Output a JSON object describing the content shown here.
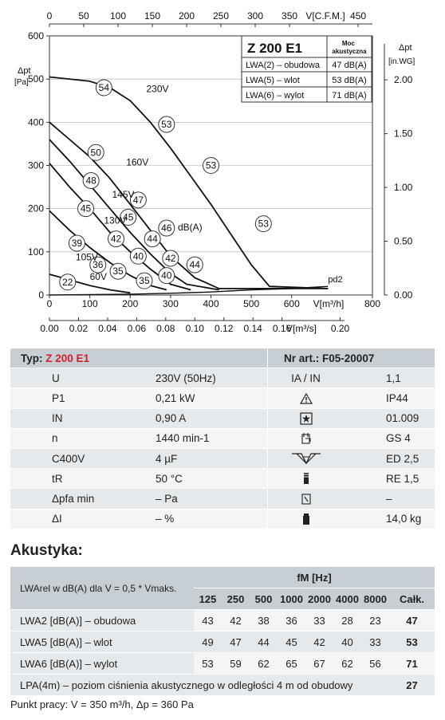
{
  "chart_data": {
    "type": "line",
    "xlabel": "V[m³/h]",
    "ylabel_left": "Δpt",
    "ylabel_left_unit": "[Pa]",
    "ylabel_right": "Δpt",
    "ylabel_right_unit": "[in.WG]",
    "x2label": "V[C.F.M.]",
    "x3label": "V[m³/s]",
    "xlim": [
      0,
      800
    ],
    "ylim": [
      0,
      600
    ],
    "x_ticks": [
      "0",
      "100",
      "200",
      "300",
      "400",
      "500",
      "600",
      "800"
    ],
    "y_ticks": [
      "0",
      "100",
      "200",
      "300",
      "400",
      "500",
      "600"
    ],
    "x2_ticks": [
      "0",
      "50",
      "100",
      "150",
      "200",
      "250",
      "300",
      "350",
      "450"
    ],
    "x3_ticks": [
      "0.00",
      "0.02",
      "0.04",
      "0.06",
      "0.08",
      "0.10",
      "0.12",
      "0.14",
      "0.16",
      "0.20"
    ],
    "y2_ticks": [
      "0.00",
      "0.50",
      "1.00",
      "1.50",
      "2.00"
    ],
    "series": [
      {
        "name": "230V",
        "points": [
          [
            0,
            505
          ],
          [
            100,
            495
          ],
          [
            150,
            480
          ],
          [
            200,
            450
          ],
          [
            250,
            400
          ],
          [
            300,
            340
          ],
          [
            350,
            275
          ],
          [
            400,
            210
          ],
          [
            450,
            140
          ],
          [
            500,
            70
          ],
          [
            545,
            20
          ],
          [
            690,
            15
          ]
        ]
      },
      {
        "name": "160V",
        "points": [
          [
            0,
            400
          ],
          [
            50,
            360
          ],
          [
            100,
            320
          ],
          [
            150,
            270
          ],
          [
            200,
            210
          ],
          [
            250,
            150
          ],
          [
            300,
            90
          ],
          [
            360,
            40
          ],
          [
            420,
            15
          ],
          [
            690,
            15
          ]
        ]
      },
      {
        "name": "145V",
        "points": [
          [
            0,
            360
          ],
          [
            50,
            310
          ],
          [
            100,
            255
          ],
          [
            150,
            200
          ],
          [
            200,
            145
          ],
          [
            250,
            95
          ],
          [
            300,
            50
          ],
          [
            340,
            25
          ],
          [
            420,
            12
          ]
        ]
      },
      {
        "name": "130V",
        "points": [
          [
            0,
            305
          ],
          [
            50,
            250
          ],
          [
            100,
            200
          ],
          [
            150,
            145
          ],
          [
            200,
            100
          ],
          [
            250,
            60
          ],
          [
            300,
            25
          ],
          [
            350,
            12
          ]
        ]
      },
      {
        "name": "105V",
        "points": [
          [
            0,
            195
          ],
          [
            50,
            150
          ],
          [
            100,
            110
          ],
          [
            150,
            75
          ],
          [
            200,
            45
          ],
          [
            250,
            22
          ],
          [
            290,
            12
          ]
        ]
      },
      {
        "name": "60V",
        "points": [
          [
            0,
            48
          ],
          [
            50,
            35
          ],
          [
            100,
            22
          ],
          [
            150,
            12
          ],
          [
            200,
            5
          ]
        ]
      }
    ],
    "system_curve": {
      "name": "pd2",
      "points": [
        [
          0,
          0
        ],
        [
          200,
          2
        ],
        [
          300,
          4
        ],
        [
          400,
          7
        ],
        [
          500,
          12
        ],
        [
          600,
          15
        ],
        [
          690,
          20
        ]
      ]
    },
    "voltage_labels": [
      {
        "text": "230V",
        "x": 240,
        "y": 470
      },
      {
        "text": "160V",
        "x": 190,
        "y": 300
      },
      {
        "text": "145V",
        "x": 155,
        "y": 225
      },
      {
        "text": "130V",
        "x": 135,
        "y": 165
      },
      {
        "text": "105V",
        "x": 65,
        "y": 80
      },
      {
        "text": "60V",
        "x": 100,
        "y": 35
      }
    ],
    "sound_markers": [
      {
        "value": "54",
        "x": 135,
        "y": 480
      },
      {
        "value": "53",
        "x": 290,
        "y": 395
      },
      {
        "value": "53",
        "x": 400,
        "y": 300
      },
      {
        "value": "53",
        "x": 530,
        "y": 165
      },
      {
        "value": "50",
        "x": 115,
        "y": 330
      },
      {
        "value": "48",
        "x": 103,
        "y": 265
      },
      {
        "value": "47",
        "x": 220,
        "y": 220
      },
      {
        "value": "45",
        "x": 90,
        "y": 200
      },
      {
        "value": "45",
        "x": 195,
        "y": 180
      },
      {
        "value": "46",
        "x": 290,
        "y": 155
      },
      {
        "value": "42",
        "x": 165,
        "y": 130
      },
      {
        "value": "44",
        "x": 255,
        "y": 130
      },
      {
        "value": "39",
        "x": 68,
        "y": 120
      },
      {
        "value": "40",
        "x": 220,
        "y": 90
      },
      {
        "value": "42",
        "x": 300,
        "y": 85
      },
      {
        "value": "44",
        "x": 360,
        "y": 70
      },
      {
        "value": "36",
        "x": 120,
        "y": 70
      },
      {
        "value": "35",
        "x": 170,
        "y": 55
      },
      {
        "value": "40",
        "x": 290,
        "y": 45
      },
      {
        "value": "22",
        "x": 45,
        "y": 30
      },
      {
        "value": "35",
        "x": 235,
        "y": 33
      }
    ],
    "dba_label": "dB(A)",
    "pd2_label": "pd2"
  },
  "legend_box": {
    "model": "Z 200 E1",
    "header": "Moc akustyczna",
    "rows": [
      {
        "label": "LWA(2) – obudowa",
        "value": "47 dB(A)"
      },
      {
        "label": "LWA(5) – wlot",
        "value": "53 dB(A)"
      },
      {
        "label": "LWA(6) – wylot",
        "value": "71 dB(A)"
      }
    ]
  },
  "spec": {
    "type_label": "Typ:",
    "type_value": "Z 200 E1",
    "nr_label": "Nr art.:",
    "nr_value": "F05-20007",
    "rows": [
      {
        "param": "U",
        "value": "230V (50Hz)",
        "icon": "current-ratio-label",
        "icon_text": "IA / IN",
        "right": "1,1"
      },
      {
        "param": "P1",
        "value": "0,21 kW",
        "icon": "warning-triangle-icon",
        "icon_text": "",
        "right": "IP44"
      },
      {
        "param": "IN",
        "value": "0,90 A",
        "icon": "star-box-icon",
        "icon_text": "",
        "right": "01.009"
      },
      {
        "param": "n",
        "value": "1440 min-1",
        "icon": "wiring-diagram-icon",
        "icon_text": "",
        "right": "GS 4"
      },
      {
        "param": "C400V",
        "value": "4 µF",
        "icon": "speed-controller-icon",
        "icon_text": "",
        "right": "ED 2,5"
      },
      {
        "param": "tR",
        "value": "50 °C",
        "icon": "thermal-contact-icon",
        "icon_text": "",
        "right": "RE 1,5"
      },
      {
        "param": "Δpfa min",
        "value": "– Pa",
        "icon": "pressure-switch-icon",
        "icon_text": "",
        "right": "–"
      },
      {
        "param": "ΔI",
        "value": "– %",
        "icon": "weight-icon",
        "icon_text": "",
        "right": "14,0 kg"
      }
    ]
  },
  "acoustic": {
    "title": "Akustyka:",
    "condition": "LWArel w dB(A) dla V = 0,5 * Vmaks.",
    "fm_label": "fM [Hz]",
    "freqs": [
      "125",
      "250",
      "500",
      "1000",
      "2000",
      "4000",
      "8000",
      "Całk."
    ],
    "rows": [
      {
        "label": "LWA2 [dB(A)]   – obudowa",
        "values": [
          "43",
          "42",
          "38",
          "36",
          "33",
          "28",
          "23"
        ],
        "total": "47"
      },
      {
        "label": "LWA5 [dB(A)]   – wlot",
        "values": [
          "49",
          "47",
          "44",
          "45",
          "42",
          "40",
          "33"
        ],
        "total": "53"
      },
      {
        "label": "LWA6 [dB(A)]   – wylot",
        "values": [
          "53",
          "59",
          "62",
          "65",
          "67",
          "62",
          "56"
        ],
        "total": "71"
      }
    ],
    "lpa_label": "LPA(4m) – poziom ciśnienia  akustycznego w odległości 4 m od obudowy",
    "lpa_value": "27",
    "footnote": "Punkt pracy: V = 350 m³/h, Δp = 360 Pa"
  }
}
